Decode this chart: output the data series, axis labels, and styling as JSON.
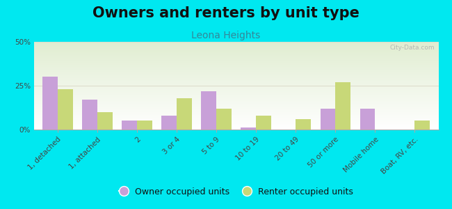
{
  "title": "Owners and renters by unit type",
  "subtitle": "Leona Heights",
  "categories": [
    "1, detached",
    "1, attached",
    "2",
    "3 or 4",
    "5 to 9",
    "10 to 19",
    "20 to 49",
    "50 or more",
    "Mobile home",
    "Boat, RV, etc."
  ],
  "owner_values": [
    30,
    17,
    5,
    8,
    22,
    1,
    0,
    12,
    12,
    0
  ],
  "renter_values": [
    23,
    10,
    5,
    18,
    12,
    8,
    6,
    27,
    0,
    5
  ],
  "owner_color": "#c8a0d8",
  "renter_color": "#c8d878",
  "background_outer": "#00e8f0",
  "ylim": [
    0,
    50
  ],
  "yticks": [
    0,
    25,
    50
  ],
  "ytick_labels": [
    "0%",
    "25%",
    "50%"
  ],
  "bar_width": 0.38,
  "legend_owner": "Owner occupied units",
  "legend_renter": "Renter occupied units",
  "watermark": "City-Data.com",
  "title_fontsize": 15,
  "subtitle_fontsize": 10,
  "tick_fontsize": 7.5,
  "legend_fontsize": 9
}
